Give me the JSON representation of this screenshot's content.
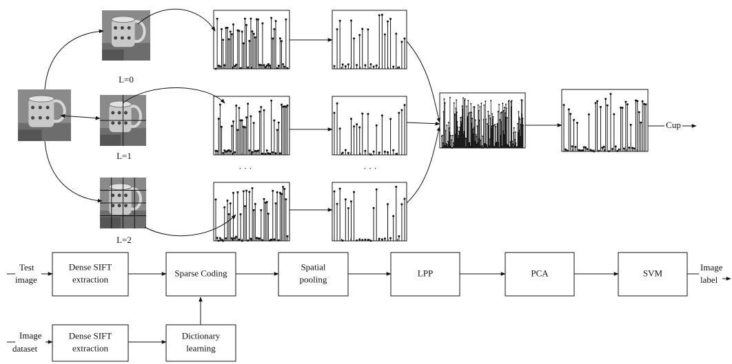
{
  "pyramid": {
    "levels": [
      "L=0",
      "L=1",
      "L=2"
    ],
    "ellipsis": [
      "· · ·",
      "· · ·"
    ],
    "output": "Cup"
  },
  "flowchart": {
    "inputs": [
      [
        "Test",
        "image"
      ],
      [
        "Image",
        "dataset"
      ]
    ],
    "nodes": [
      [
        "Dense SIFT",
        "extraction"
      ],
      [
        "Sparse Coding"
      ],
      [
        "Spatial",
        "pooling"
      ],
      [
        "LPP"
      ],
      [
        "PCA"
      ],
      [
        "SVM"
      ],
      [
        "Dense SIFT",
        "extraction"
      ],
      [
        "Dictionary",
        "learning"
      ]
    ],
    "output": [
      "Image",
      "label"
    ]
  }
}
